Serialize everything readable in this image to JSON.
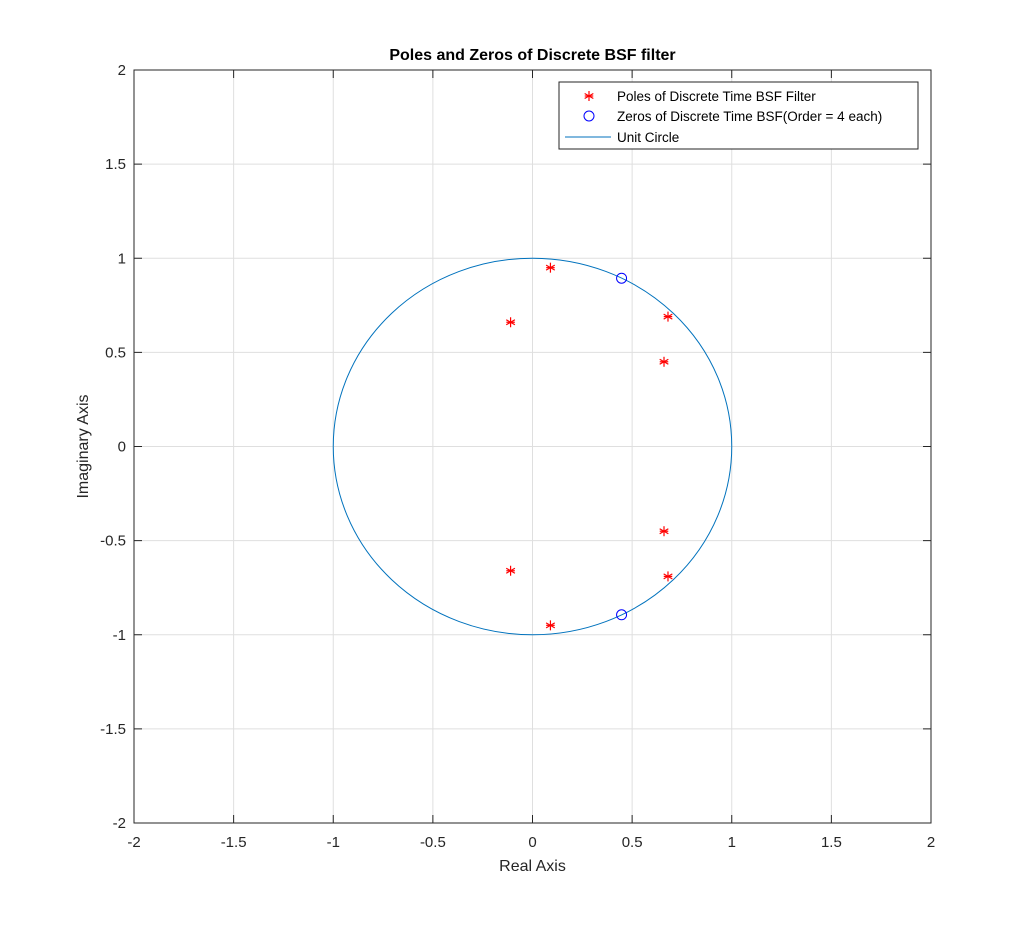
{
  "chart_data": {
    "type": "scatter",
    "title": "Poles and Zeros of Discrete BSF filter",
    "xlabel": "Real Axis",
    "ylabel": "Imaginary Axis",
    "xlim": [
      -2,
      2
    ],
    "ylim": [
      -2,
      2
    ],
    "xticks": [
      -2,
      -1.5,
      -1,
      -0.5,
      0,
      0.5,
      1,
      1.5,
      2
    ],
    "yticks": [
      -2,
      -1.5,
      -1,
      -0.5,
      0,
      0.5,
      1,
      1.5,
      2
    ],
    "xtick_labels": [
      "-2",
      "-1.5",
      "-1",
      "-0.5",
      "0",
      "0.5",
      "1",
      "1.5",
      "2"
    ],
    "ytick_labels": [
      "-2",
      "-1.5",
      "-1",
      "-0.5",
      "0",
      "0.5",
      "1",
      "1.5",
      "2"
    ],
    "grid": true,
    "legend_position": "top-right",
    "series": [
      {
        "name": "Poles of Discrete Time BSF Filter",
        "marker": "asterisk",
        "color": "#ff0000",
        "x": [
          0.09,
          0.09,
          -0.11,
          -0.11,
          0.68,
          0.68,
          0.66,
          0.66
        ],
        "y": [
          0.95,
          -0.95,
          0.66,
          -0.66,
          0.69,
          -0.69,
          0.45,
          -0.45
        ]
      },
      {
        "name": "Zeros of Discrete Time BSF(Order = 4 each)",
        "marker": "circle",
        "color": "#0000ff",
        "x": [
          0.447,
          0.447
        ],
        "y": [
          0.894,
          -0.894
        ]
      },
      {
        "name": "Unit Circle",
        "marker": "line",
        "color": "#0072bd",
        "shape": "circle",
        "radius": 1
      }
    ]
  }
}
